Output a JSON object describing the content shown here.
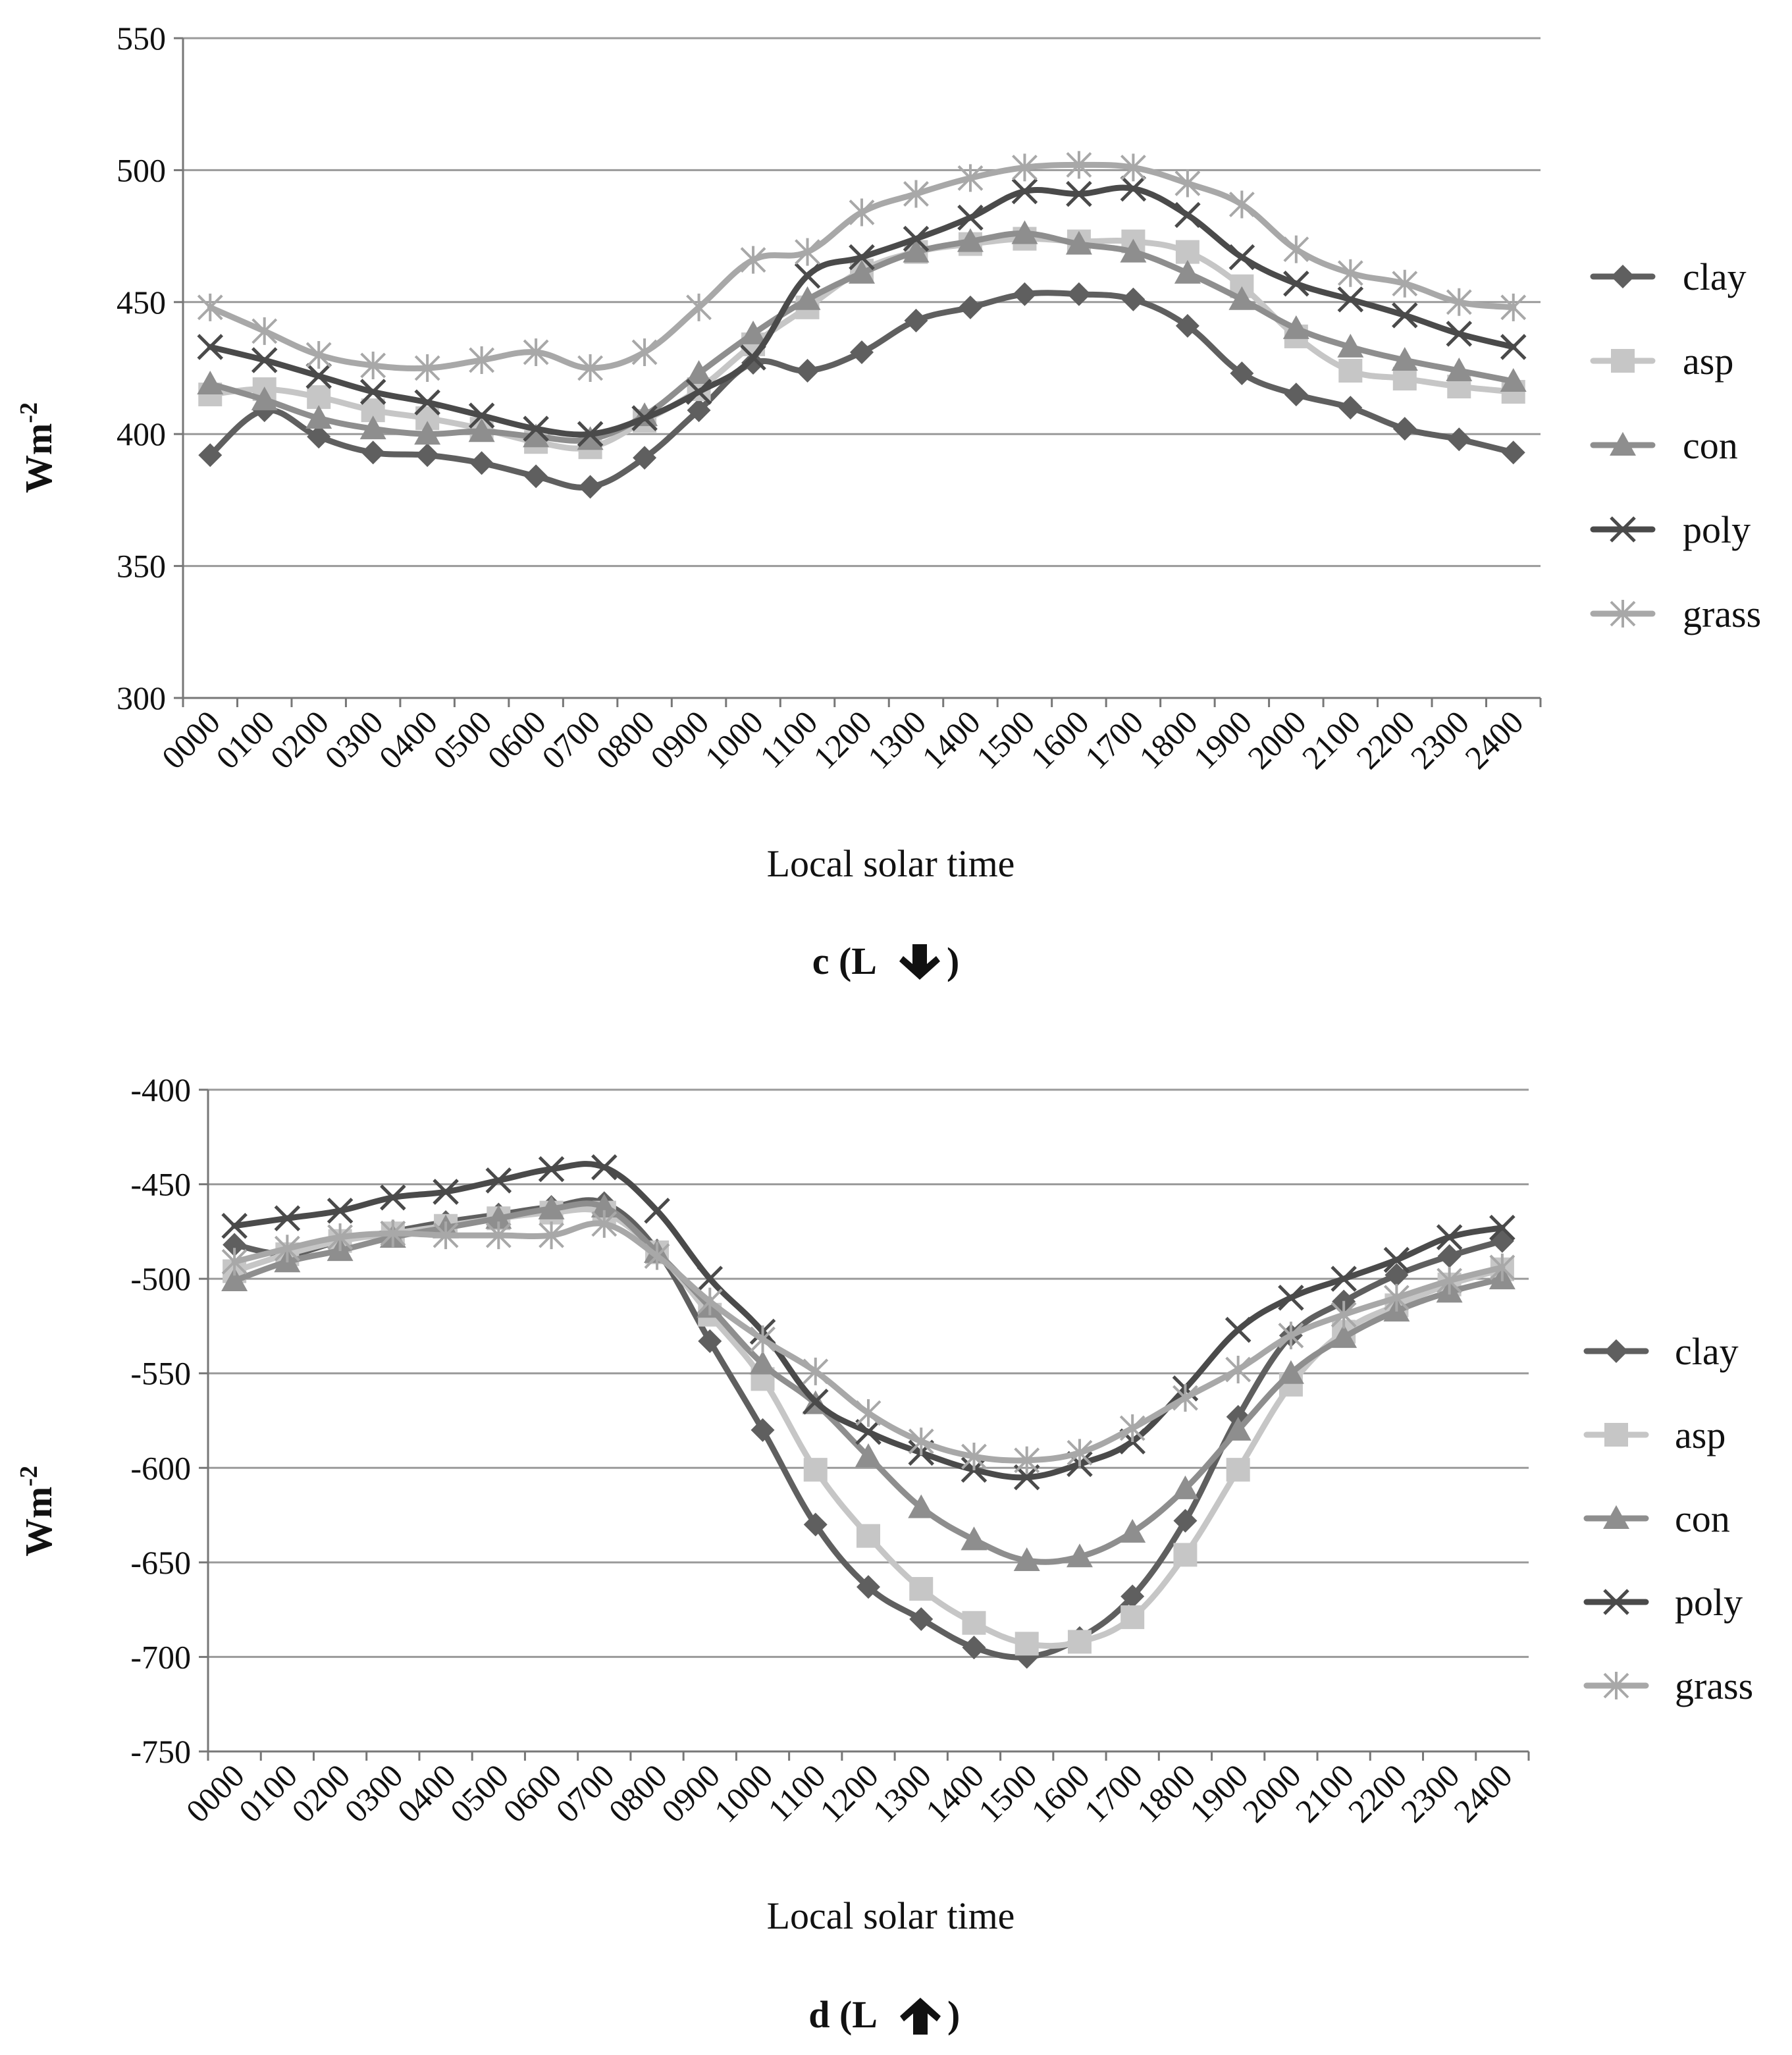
{
  "figure": {
    "charts": [
      {
        "id": "c",
        "caption_prefix": "c (L",
        "caption_arrow": "down",
        "caption_suffix": ")",
        "ylabel_base": "Wm",
        "ylabel_sup": "-2",
        "xlabel": "Local solar time"
      },
      {
        "id": "d",
        "caption_prefix": "d (L",
        "caption_arrow": "up",
        "caption_suffix": ")",
        "ylabel_base": "Wm",
        "ylabel_sup": "-2",
        "xlabel": "Local solar time"
      }
    ]
  },
  "chart_data": [
    {
      "type": "line",
      "title": "c (L↓)",
      "xlabel": "Local solar time",
      "ylabel": "Wm-2",
      "ylim": [
        300,
        550
      ],
      "yticks": [
        300,
        350,
        400,
        450,
        500,
        550
      ],
      "grid": true,
      "legend": "right",
      "categories": [
        "0000",
        "0100",
        "0200",
        "0300",
        "0400",
        "0500",
        "0600",
        "0700",
        "0800",
        "0900",
        "1000",
        "1100",
        "1200",
        "1300",
        "1400",
        "1500",
        "1600",
        "1700",
        "1800",
        "1900",
        "2000",
        "2100",
        "2200",
        "2300",
        "2400"
      ],
      "series": [
        {
          "name": "clay",
          "marker": "diamond",
          "color": "#5f5f5f",
          "values": [
            392,
            409,
            399,
            393,
            392,
            389,
            384,
            380,
            391,
            409,
            427,
            424,
            431,
            443,
            448,
            453,
            453,
            451,
            441,
            423,
            415,
            410,
            402,
            398,
            393
          ]
        },
        {
          "name": "asp",
          "marker": "square",
          "color": "#c6c6c6",
          "values": [
            415,
            417,
            414,
            409,
            406,
            402,
            397,
            395,
            405,
            417,
            434,
            448,
            462,
            469,
            472,
            474,
            473,
            473,
            469,
            456,
            437,
            424,
            421,
            418,
            416
          ]
        },
        {
          "name": "con",
          "marker": "triangle",
          "color": "#8e8e8e",
          "values": [
            419,
            413,
            406,
            402,
            400,
            401,
            399,
            398,
            407,
            423,
            438,
            451,
            461,
            469,
            473,
            476,
            472,
            469,
            461,
            451,
            440,
            433,
            428,
            424,
            420
          ]
        },
        {
          "name": "poly",
          "marker": "x",
          "color": "#4a4a4a",
          "values": [
            433,
            428,
            422,
            416,
            412,
            407,
            402,
            400,
            406,
            416,
            429,
            460,
            467,
            474,
            482,
            492,
            491,
            493,
            483,
            467,
            457,
            451,
            445,
            438,
            433
          ]
        },
        {
          "name": "grass",
          "marker": "star",
          "color": "#a8a8a8",
          "values": [
            448,
            439,
            430,
            426,
            425,
            428,
            431,
            425,
            431,
            448,
            466,
            469,
            484,
            491,
            497,
            501,
            502,
            501,
            495,
            487,
            470,
            461,
            457,
            450,
            448
          ]
        }
      ]
    },
    {
      "type": "line",
      "title": "d (L↑)",
      "xlabel": "Local solar time",
      "ylabel": "Wm-2",
      "ylim": [
        -750,
        -400
      ],
      "yticks": [
        -750,
        -700,
        -650,
        -600,
        -550,
        -500,
        -450,
        -400
      ],
      "grid": true,
      "legend": "right",
      "categories": [
        "0000",
        "0100",
        "0200",
        "0300",
        "0400",
        "0500",
        "0600",
        "0700",
        "0800",
        "0900",
        "1000",
        "1100",
        "1200",
        "1300",
        "1400",
        "1500",
        "1600",
        "1700",
        "1800",
        "1900",
        "2000",
        "2100",
        "2200",
        "2300",
        "2400"
      ],
      "series": [
        {
          "name": "clay",
          "marker": "diamond",
          "color": "#5f5f5f",
          "values": [
            -482,
            -487,
            -480,
            -475,
            -470,
            -466,
            -462,
            -460,
            -485,
            -533,
            -580,
            -630,
            -663,
            -680,
            -695,
            -700,
            -690,
            -668,
            -628,
            -573,
            -530,
            -512,
            -498,
            -488,
            -480
          ]
        },
        {
          "name": "asp",
          "marker": "square",
          "color": "#c6c6c6",
          "values": [
            -496,
            -487,
            -480,
            -476,
            -472,
            -468,
            -465,
            -465,
            -486,
            -519,
            -553,
            -601,
            -636,
            -664,
            -682,
            -693,
            -692,
            -679,
            -646,
            -601,
            -556,
            -528,
            -514,
            -503,
            -495
          ]
        },
        {
          "name": "con",
          "marker": "triangle",
          "color": "#8e8e8e",
          "values": [
            -501,
            -491,
            -485,
            -478,
            -473,
            -468,
            -463,
            -462,
            -486,
            -515,
            -545,
            -566,
            -594,
            -621,
            -638,
            -649,
            -647,
            -634,
            -611,
            -580,
            -550,
            -531,
            -517,
            -507,
            -500
          ]
        },
        {
          "name": "poly",
          "marker": "x",
          "color": "#4a4a4a",
          "values": [
            -472,
            -468,
            -464,
            -457,
            -454,
            -448,
            -442,
            -441,
            -464,
            -500,
            -528,
            -565,
            -581,
            -592,
            -601,
            -605,
            -598,
            -586,
            -558,
            -527,
            -510,
            -500,
            -490,
            -478,
            -473
          ]
        },
        {
          "name": "grass",
          "marker": "star",
          "color": "#a8a8a8",
          "values": [
            -491,
            -484,
            -478,
            -476,
            -477,
            -477,
            -477,
            -471,
            -488,
            -512,
            -532,
            -549,
            -571,
            -586,
            -594,
            -596,
            -592,
            -579,
            -563,
            -548,
            -530,
            -519,
            -510,
            -501,
            -494
          ]
        }
      ]
    }
  ]
}
